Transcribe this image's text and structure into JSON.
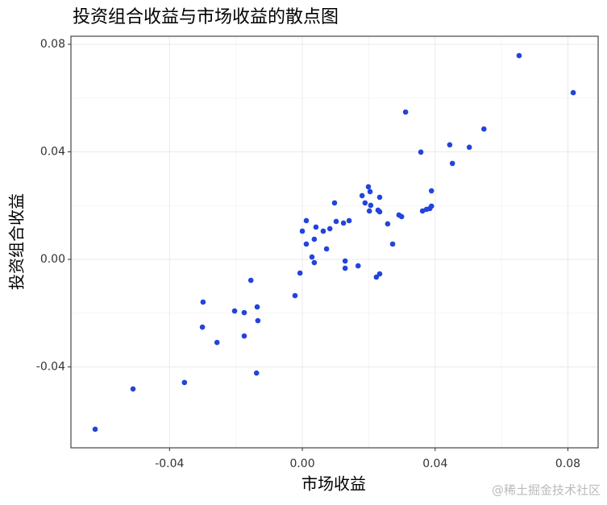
{
  "chart_data": {
    "type": "scatter",
    "title": "投资组合收益与市场收益的散点图",
    "x_label": "市场收益",
    "y_label": "投资组合收益",
    "series": [
      {
        "color": "#2244dd",
        "x": [
          -0.0624,
          -0.051,
          -0.0355,
          -0.0299,
          -0.0301,
          -0.0257,
          -0.0204,
          -0.0175,
          -0.0175,
          -0.0155,
          -0.0136,
          -0.0134,
          -0.0138,
          -0.0022,
          -0.0007,
          0.0,
          0.0012,
          0.0012,
          0.0029,
          0.0036,
          0.0036,
          0.0041,
          0.0063,
          0.0073,
          0.0083,
          0.0097,
          0.0102,
          0.0124,
          0.0129,
          0.0129,
          0.0141,
          0.0168,
          0.018,
          0.0189,
          0.0199,
          0.0204,
          0.0202,
          0.0206,
          0.0228,
          0.0233,
          0.0233,
          0.0223,
          0.0233,
          0.0257,
          0.0272,
          0.0291,
          0.0299,
          0.0311,
          0.0357,
          0.0362,
          0.0374,
          0.0384,
          0.0389,
          0.0389,
          0.0444,
          0.0452,
          0.0503,
          0.0547,
          0.0653,
          0.0816
        ],
        "values": [
          -0.0632,
          -0.0482,
          -0.0458,
          -0.0159,
          -0.0252,
          -0.0309,
          -0.0192,
          -0.0198,
          -0.0285,
          -0.0078,
          -0.0177,
          -0.0228,
          -0.0423,
          -0.0135,
          -0.0051,
          0.0105,
          0.0057,
          0.0144,
          0.0009,
          -0.0012,
          0.0075,
          0.012,
          0.0105,
          0.0039,
          0.0114,
          0.021,
          0.0141,
          0.0135,
          -0.0006,
          -0.0033,
          0.0144,
          -0.0024,
          0.0237,
          0.021,
          0.027,
          0.0252,
          0.018,
          0.0201,
          0.0183,
          0.0231,
          0.0177,
          -0.0066,
          -0.0054,
          0.0132,
          0.0057,
          0.0165,
          0.0159,
          0.0548,
          0.0399,
          0.018,
          0.0186,
          0.0189,
          0.0198,
          0.0255,
          0.0426,
          0.0357,
          0.0417,
          0.0485,
          0.0758,
          0.062
        ]
      }
    ],
    "xlim": [
      -0.0697,
      0.0891
    ],
    "ylim": [
      -0.0701,
      0.083
    ],
    "xticks": [
      -0.04,
      {
        "value": 0,
        "label": "0.00"
      },
      0.04,
      0.08
    ],
    "yticks": [
      -0.04,
      {
        "value": 0,
        "label": "0.00"
      },
      0.04,
      0.08
    ],
    "grid": true
  },
  "watermark": "@稀土掘金技术社区"
}
